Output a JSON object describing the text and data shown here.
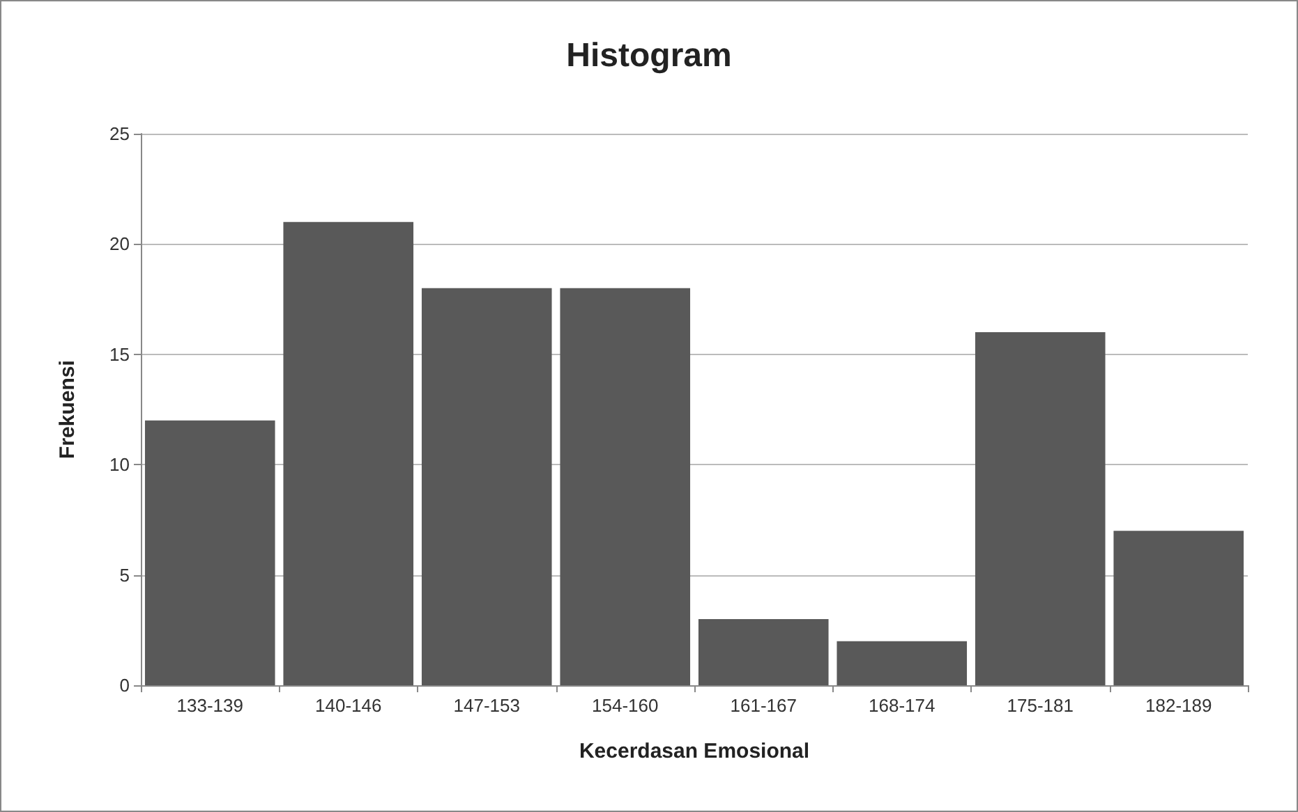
{
  "chart_data": {
    "type": "bar",
    "title": "Histogram",
    "xlabel": "Kecerdasan Emosional",
    "ylabel": "Frekuensi",
    "categories": [
      "133-139",
      "140-146",
      "147-153",
      "154-160",
      "161-167",
      "168-174",
      "175-181",
      "182-189"
    ],
    "values": [
      12,
      21,
      18,
      18,
      3,
      2,
      16,
      7
    ],
    "color": "#595959",
    "ylim": [
      0,
      25
    ],
    "yticks": [
      0,
      5,
      10,
      15,
      20,
      25
    ],
    "grid": "y"
  }
}
